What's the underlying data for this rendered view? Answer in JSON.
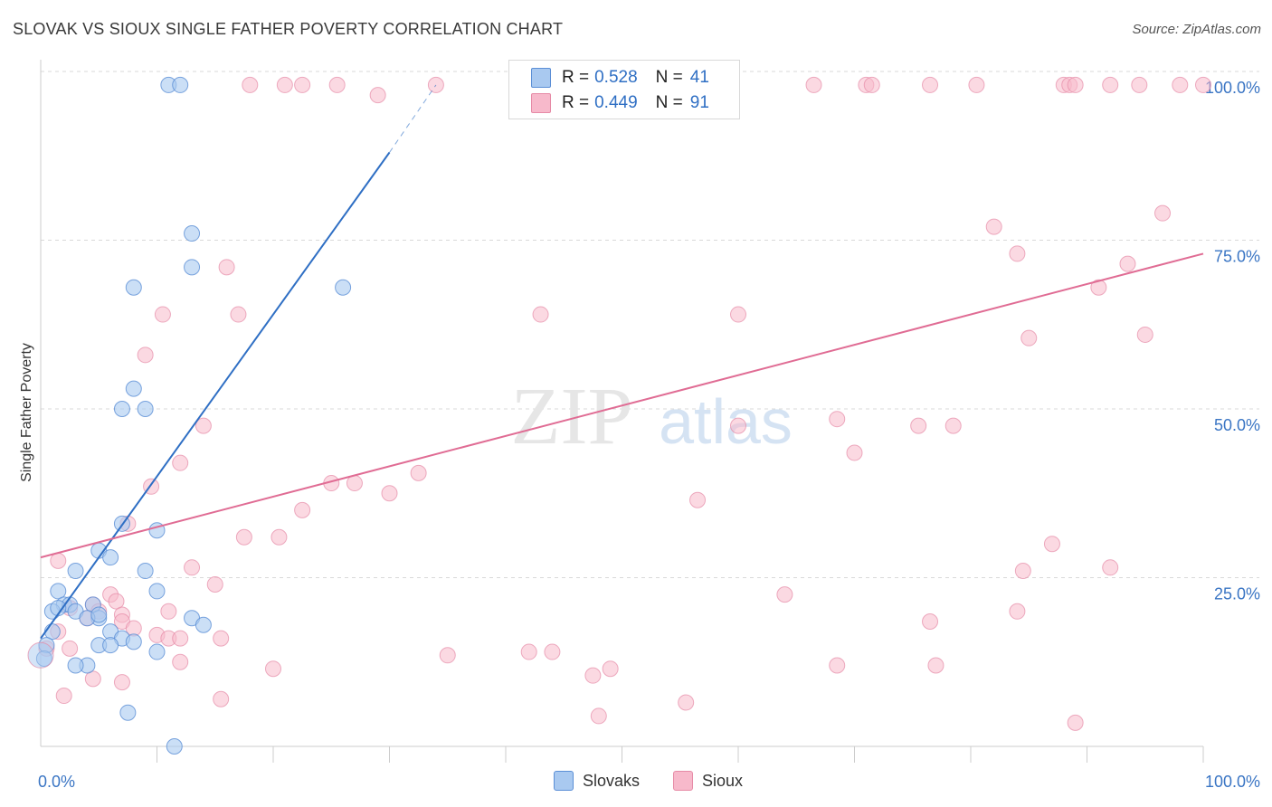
{
  "title": "SLOVAK VS SIOUX SINGLE FATHER POVERTY CORRELATION CHART",
  "source": "Source: ZipAtlas.com",
  "watermark": {
    "zip": "ZIP",
    "atlas": "atlas"
  },
  "legend": {
    "rows": [
      {
        "r_label": "R =",
        "r_value": "0.528",
        "n_label": "N =",
        "n_value": "41"
      },
      {
        "r_label": "R =",
        "r_value": "0.449",
        "n_label": "N =",
        "n_value": "91"
      }
    ],
    "bottom": [
      "Slovaks",
      "Sioux"
    ]
  },
  "colors": {
    "slovak_fill": "#a9c9f0",
    "slovak_stroke": "#5b8fd6",
    "slovak_line": "#2f6fc4",
    "sioux_fill": "#f7b9cb",
    "sioux_stroke": "#e68aa6",
    "sioux_line": "#e06c94",
    "tick_label": "#3a75c4",
    "grid": "#d9d9d9"
  },
  "chart_data": {
    "type": "scatter",
    "title": "SLOVAK VS SIOUX SINGLE FATHER POVERTY CORRELATION CHART",
    "xlabel": "",
    "ylabel": "Single Father Poverty",
    "xlim": [
      0,
      100
    ],
    "ylim": [
      0,
      100
    ],
    "x_tick_labels": [
      "0.0%",
      "100.0%"
    ],
    "y_ticks": [
      25,
      50,
      75,
      100
    ],
    "y_tick_labels": [
      "25.0%",
      "50.0%",
      "75.0%",
      "100.0%"
    ],
    "series": [
      {
        "name": "Slovaks",
        "r": 0.528,
        "n": 41,
        "trend": {
          "x0": 0,
          "y0": 16,
          "x1": 30,
          "y1": 88,
          "dash_to_x": 34,
          "dash_to_y": 98
        },
        "points": [
          [
            11,
            98
          ],
          [
            12,
            98
          ],
          [
            13,
            76
          ],
          [
            13,
            71
          ],
          [
            8,
            68
          ],
          [
            26,
            68
          ],
          [
            8,
            53
          ],
          [
            7,
            50
          ],
          [
            9,
            50
          ],
          [
            7,
            33
          ],
          [
            10,
            32
          ],
          [
            5,
            29
          ],
          [
            6,
            28
          ],
          [
            3,
            26
          ],
          [
            9,
            26
          ],
          [
            1.5,
            23
          ],
          [
            10,
            23
          ],
          [
            2,
            21
          ],
          [
            2.5,
            21
          ],
          [
            4.5,
            21
          ],
          [
            3,
            20
          ],
          [
            5,
            19
          ],
          [
            1,
            20
          ],
          [
            13,
            19
          ],
          [
            4,
            19
          ],
          [
            5,
            19.5
          ],
          [
            14,
            18
          ],
          [
            6,
            17
          ],
          [
            7,
            16
          ],
          [
            1,
            17
          ],
          [
            8,
            15.5
          ],
          [
            5,
            15
          ],
          [
            6,
            15
          ],
          [
            10,
            14
          ],
          [
            0.5,
            15
          ],
          [
            0.3,
            13
          ],
          [
            4,
            12
          ],
          [
            3,
            12
          ],
          [
            7.5,
            5
          ],
          [
            11.5,
            0
          ],
          [
            1.5,
            20.5
          ]
        ],
        "big_points": [
          [
            0,
            13.5
          ]
        ]
      },
      {
        "name": "Sioux",
        "r": 0.449,
        "n": 91,
        "trend": {
          "x0": 0,
          "y0": 28,
          "x1": 100,
          "y1": 73
        },
        "points": [
          [
            18,
            98
          ],
          [
            21,
            98
          ],
          [
            22.5,
            98
          ],
          [
            25.5,
            98
          ],
          [
            29,
            96.5
          ],
          [
            34,
            98
          ],
          [
            46,
            98
          ],
          [
            66.5,
            98
          ],
          [
            71,
            98
          ],
          [
            71.5,
            98
          ],
          [
            76.5,
            98
          ],
          [
            80.5,
            98
          ],
          [
            88,
            98
          ],
          [
            88.5,
            98
          ],
          [
            89,
            98
          ],
          [
            92,
            98
          ],
          [
            94.5,
            98
          ],
          [
            98,
            98
          ],
          [
            100,
            98
          ],
          [
            96.5,
            79
          ],
          [
            82,
            77
          ],
          [
            84,
            73
          ],
          [
            16,
            71
          ],
          [
            93.5,
            71.5
          ],
          [
            91,
            68
          ],
          [
            17,
            64
          ],
          [
            43,
            64
          ],
          [
            60,
            64
          ],
          [
            10.5,
            64
          ],
          [
            95,
            61
          ],
          [
            85,
            60.5
          ],
          [
            9,
            58
          ],
          [
            68.5,
            48.5
          ],
          [
            14,
            47.5
          ],
          [
            60,
            47.5
          ],
          [
            75.5,
            47.5
          ],
          [
            78.5,
            47.5
          ],
          [
            70,
            43.5
          ],
          [
            12,
            42
          ],
          [
            32.5,
            40.5
          ],
          [
            25,
            39
          ],
          [
            27,
            39
          ],
          [
            9.5,
            38.5
          ],
          [
            30,
            37.5
          ],
          [
            56.5,
            36.5
          ],
          [
            22.5,
            35
          ],
          [
            7.5,
            33
          ],
          [
            17.5,
            31
          ],
          [
            20.5,
            31
          ],
          [
            87,
            30
          ],
          [
            1.5,
            27.5
          ],
          [
            13,
            26.5
          ],
          [
            84.5,
            26
          ],
          [
            92,
            26.5
          ],
          [
            15,
            24
          ],
          [
            64,
            22.5
          ],
          [
            6,
            22.5
          ],
          [
            4.5,
            21
          ],
          [
            6.5,
            21.5
          ],
          [
            5,
            20
          ],
          [
            2.5,
            20.5
          ],
          [
            7,
            19.5
          ],
          [
            11,
            20
          ],
          [
            84,
            20
          ],
          [
            4,
            19
          ],
          [
            7,
            18.5
          ],
          [
            76.5,
            18.5
          ],
          [
            8,
            17.5
          ],
          [
            10,
            16.5
          ],
          [
            11,
            16
          ],
          [
            15.5,
            16
          ],
          [
            12,
            16
          ],
          [
            2.5,
            14.5
          ],
          [
            1.5,
            17
          ],
          [
            0.5,
            14.5
          ],
          [
            35,
            13.5
          ],
          [
            42,
            14
          ],
          [
            44,
            14
          ],
          [
            12,
            12.5
          ],
          [
            68.5,
            12
          ],
          [
            77,
            12
          ],
          [
            20,
            11.5
          ],
          [
            47.5,
            10.5
          ],
          [
            49,
            11.5
          ],
          [
            4.5,
            10
          ],
          [
            7,
            9.5
          ],
          [
            2,
            7.5
          ],
          [
            15.5,
            7
          ],
          [
            55.5,
            6.5
          ],
          [
            48,
            4.5
          ],
          [
            89,
            3.5
          ]
        ]
      }
    ]
  }
}
